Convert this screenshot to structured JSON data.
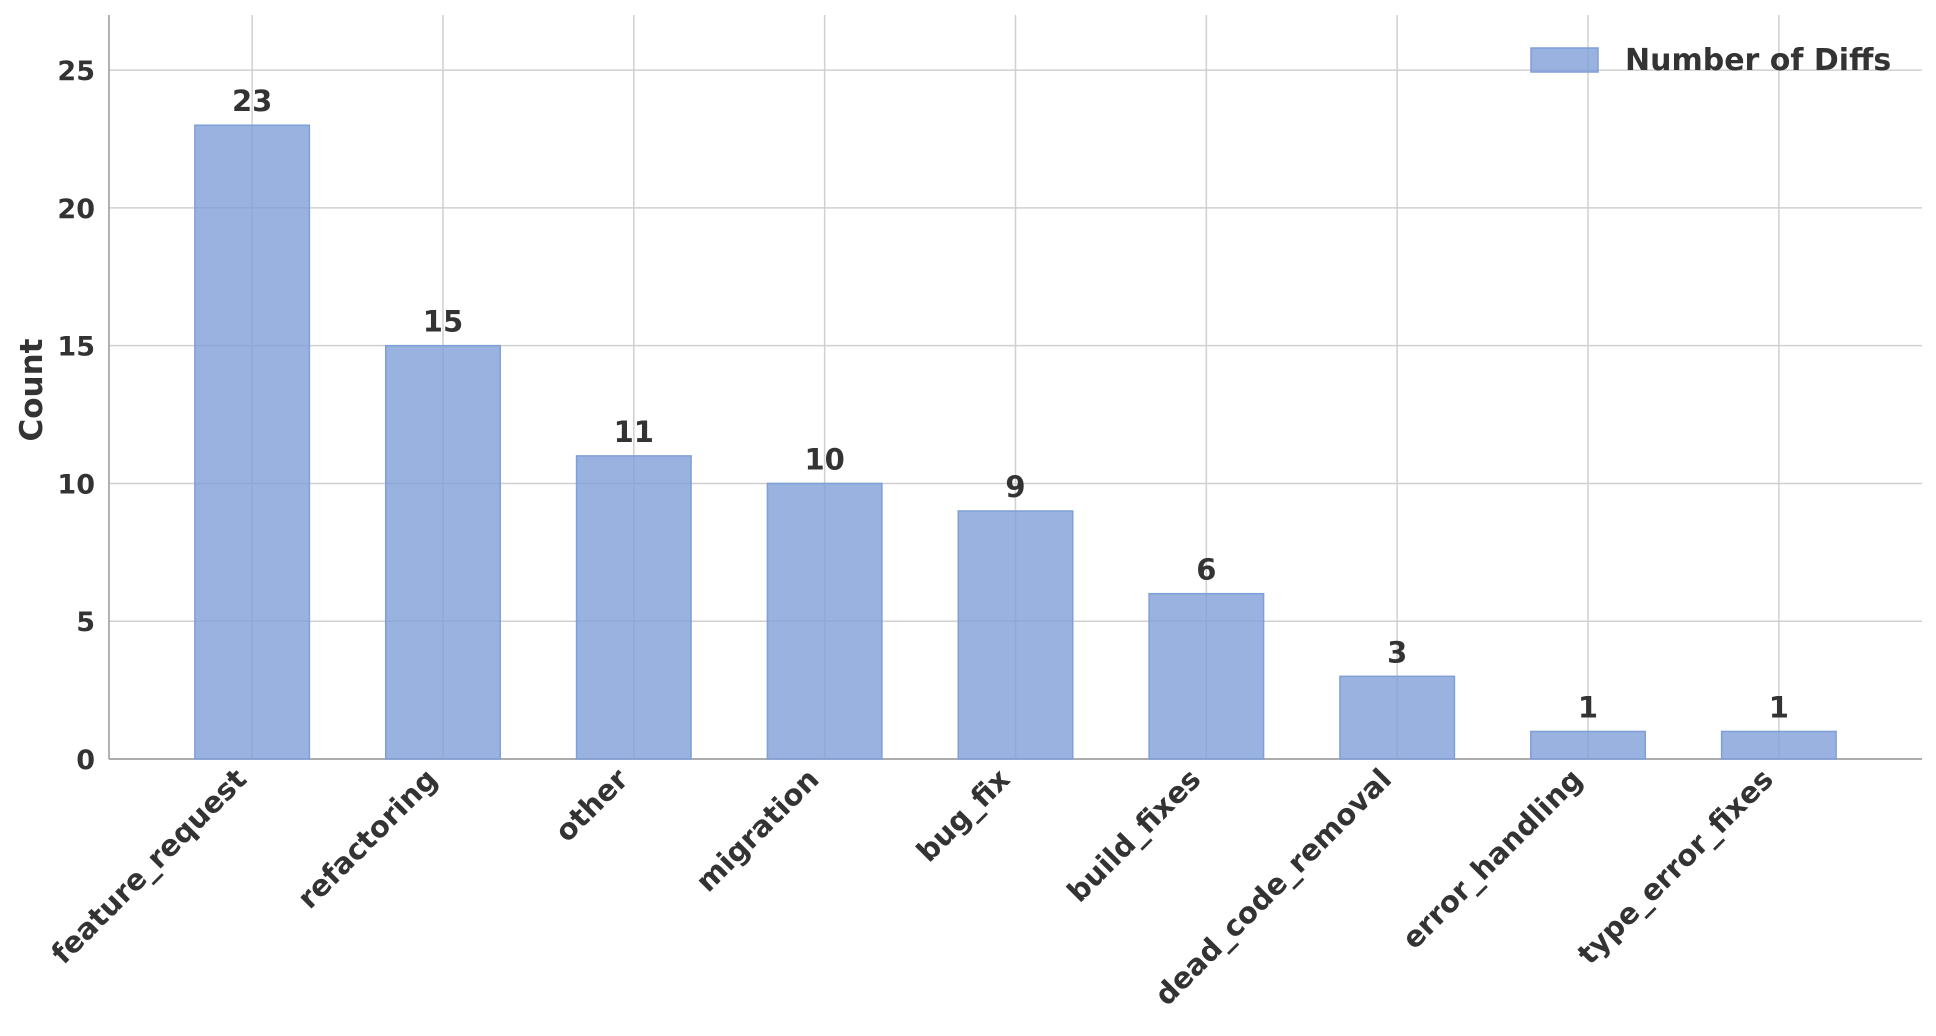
{
  "chart_data": {
    "type": "bar",
    "y_label": "Count",
    "categories": [
      "feature_request",
      "refactoring",
      "other",
      "migration",
      "bug_fix",
      "build_fixes",
      "dead_code_removal",
      "error_handling",
      "type_error_fixes"
    ],
    "series": [
      {
        "name": "Number of Diffs",
        "color": "#7f9fd8",
        "values": [
          23,
          15,
          11,
          10,
          9,
          6,
          3,
          1,
          1
        ]
      }
    ],
    "ylim": [
      0,
      27
    ],
    "yticks": [
      0,
      5,
      10,
      15,
      20,
      25
    ],
    "grid": true,
    "legend": "upper right"
  }
}
